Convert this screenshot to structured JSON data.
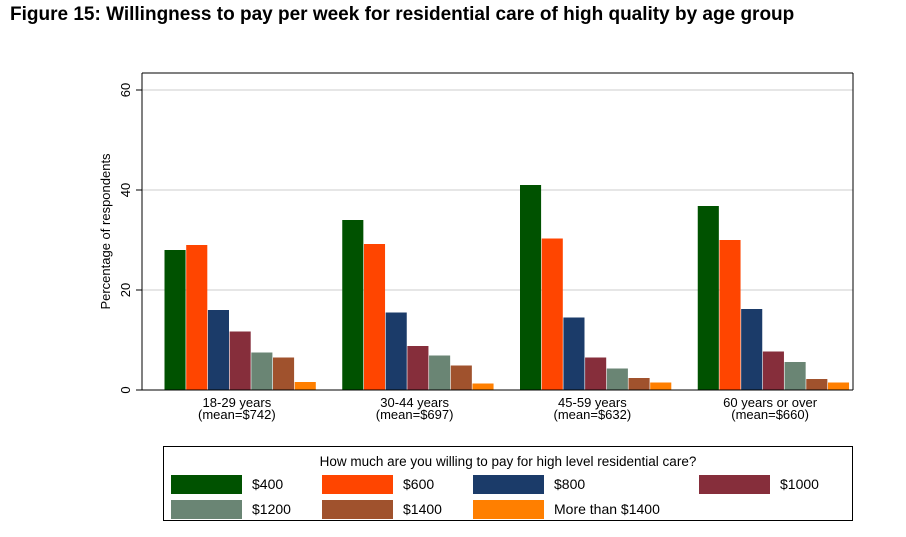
{
  "figure_title": "Figure 15: Willingness to pay per week for residential care of high quality by age group",
  "chart_data": {
    "type": "bar",
    "ylabel": "Percentage of respondents",
    "xlabel": "",
    "ylim": [
      0,
      60
    ],
    "yticks": [
      0,
      20,
      40,
      60
    ],
    "grid": true,
    "legend_title": "How much are you willing to pay for high level residential care?",
    "legend_position": "bottom",
    "categories": [
      [
        "18-29 years",
        "(mean=$742)"
      ],
      [
        "30-44 years",
        "(mean=$697)"
      ],
      [
        "45-59 years",
        "(mean=$632)"
      ],
      [
        "60 years or over",
        "(mean=$660)"
      ]
    ],
    "series": [
      {
        "name": "$400",
        "color": "#005200",
        "values": [
          28,
          34,
          41,
          36.8
        ]
      },
      {
        "name": "$600",
        "color": "#ff4500",
        "values": [
          29,
          29.2,
          30.3,
          30
        ]
      },
      {
        "name": "$800",
        "color": "#1b3b69",
        "values": [
          16,
          15.5,
          14.5,
          16.2
        ]
      },
      {
        "name": "$1000",
        "color": "#862e3b",
        "values": [
          11.7,
          8.8,
          6.5,
          7.7
        ]
      },
      {
        "name": "$1200",
        "color": "#6a8574",
        "values": [
          7.5,
          6.9,
          4.3,
          5.6
        ]
      },
      {
        "name": "$1400",
        "color": "#a0522d",
        "values": [
          6.5,
          4.9,
          2.4,
          2.2
        ]
      },
      {
        "name": "More than $1400",
        "color": "#ff7f00",
        "values": [
          1.6,
          1.3,
          1.5,
          1.5
        ]
      }
    ]
  }
}
